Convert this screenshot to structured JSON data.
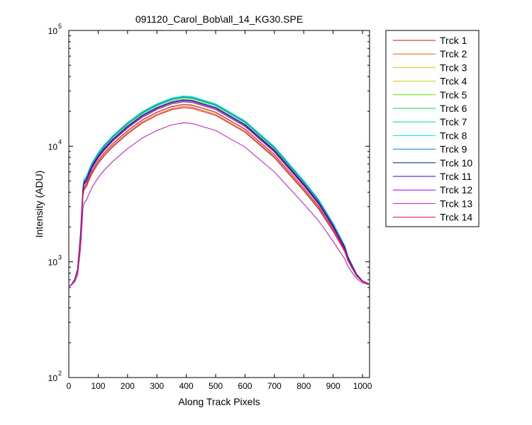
{
  "chart_data": {
    "type": "line",
    "title": "091120_Carol_Bob\\all_14_KG30.SPE",
    "xlabel": "Along Track Pixels",
    "ylabel": "Intensity (ADU)",
    "xlim": [
      0,
      1024
    ],
    "ylim": [
      100,
      100000
    ],
    "yscale": "log",
    "grid": false,
    "legend_position": "outside-top-right",
    "x_ticks": [
      0,
      100,
      200,
      300,
      400,
      500,
      600,
      700,
      800,
      900,
      1000
    ],
    "y_ticks": [
      {
        "base": "10",
        "exp": "2",
        "value": 100
      },
      {
        "base": "10",
        "exp": "3",
        "value": 1000
      },
      {
        "base": "10",
        "exp": "4",
        "value": 10000
      },
      {
        "base": "10",
        "exp": "5",
        "value": 100000
      }
    ],
    "profile": {
      "x": [
        0,
        10,
        20,
        30,
        40,
        48,
        52,
        60,
        70,
        80,
        100,
        120,
        150,
        200,
        250,
        300,
        350,
        390,
        420,
        500,
        600,
        700,
        800,
        850,
        900,
        940,
        950,
        960,
        980,
        1000,
        1024
      ],
      "y": [
        610,
        640,
        700,
        850,
        1700,
        4100,
        4700,
        5000,
        5800,
        6600,
        8000,
        9300,
        11200,
        14500,
        18000,
        21000,
        23500,
        24500,
        24200,
        21000,
        15000,
        9000,
        4600,
        3200,
        2000,
        1300,
        1080,
        960,
        770,
        680,
        640
      ]
    },
    "series": [
      {
        "name": "Trck 1",
        "color": "#cc1010",
        "scale": 0.875
      },
      {
        "name": "Trck 2",
        "color": "#e06010",
        "scale": 0.895
      },
      {
        "name": "Trck 3",
        "color": "#d8c000",
        "scale": 0.94
      },
      {
        "name": "Trck 4",
        "color": "#b8d800",
        "scale": 0.99
      },
      {
        "name": "Trck 5",
        "color": "#60e000",
        "scale": 1.06
      },
      {
        "name": "Trck 6",
        "color": "#00e040",
        "scale": 1.09
      },
      {
        "name": "Trck 7",
        "color": "#00d8a0",
        "scale": 1.1
      },
      {
        "name": "Trck 8",
        "color": "#00e0e0",
        "scale": 1.11
      },
      {
        "name": "Trck 9",
        "color": "#0080e0",
        "scale": 1.08
      },
      {
        "name": "Trck 10",
        "color": "#001880",
        "scale": 1.03
      },
      {
        "name": "Trck 11",
        "color": "#3000d0",
        "scale": 1.01
      },
      {
        "name": "Trck 12",
        "color": "#a000e0",
        "scale": 0.985
      },
      {
        "name": "Trck 13",
        "color": "#c010c0",
        "scale": 0.64
      },
      {
        "name": "Trck 14",
        "color": "#e00060",
        "scale": 0.93
      }
    ]
  }
}
